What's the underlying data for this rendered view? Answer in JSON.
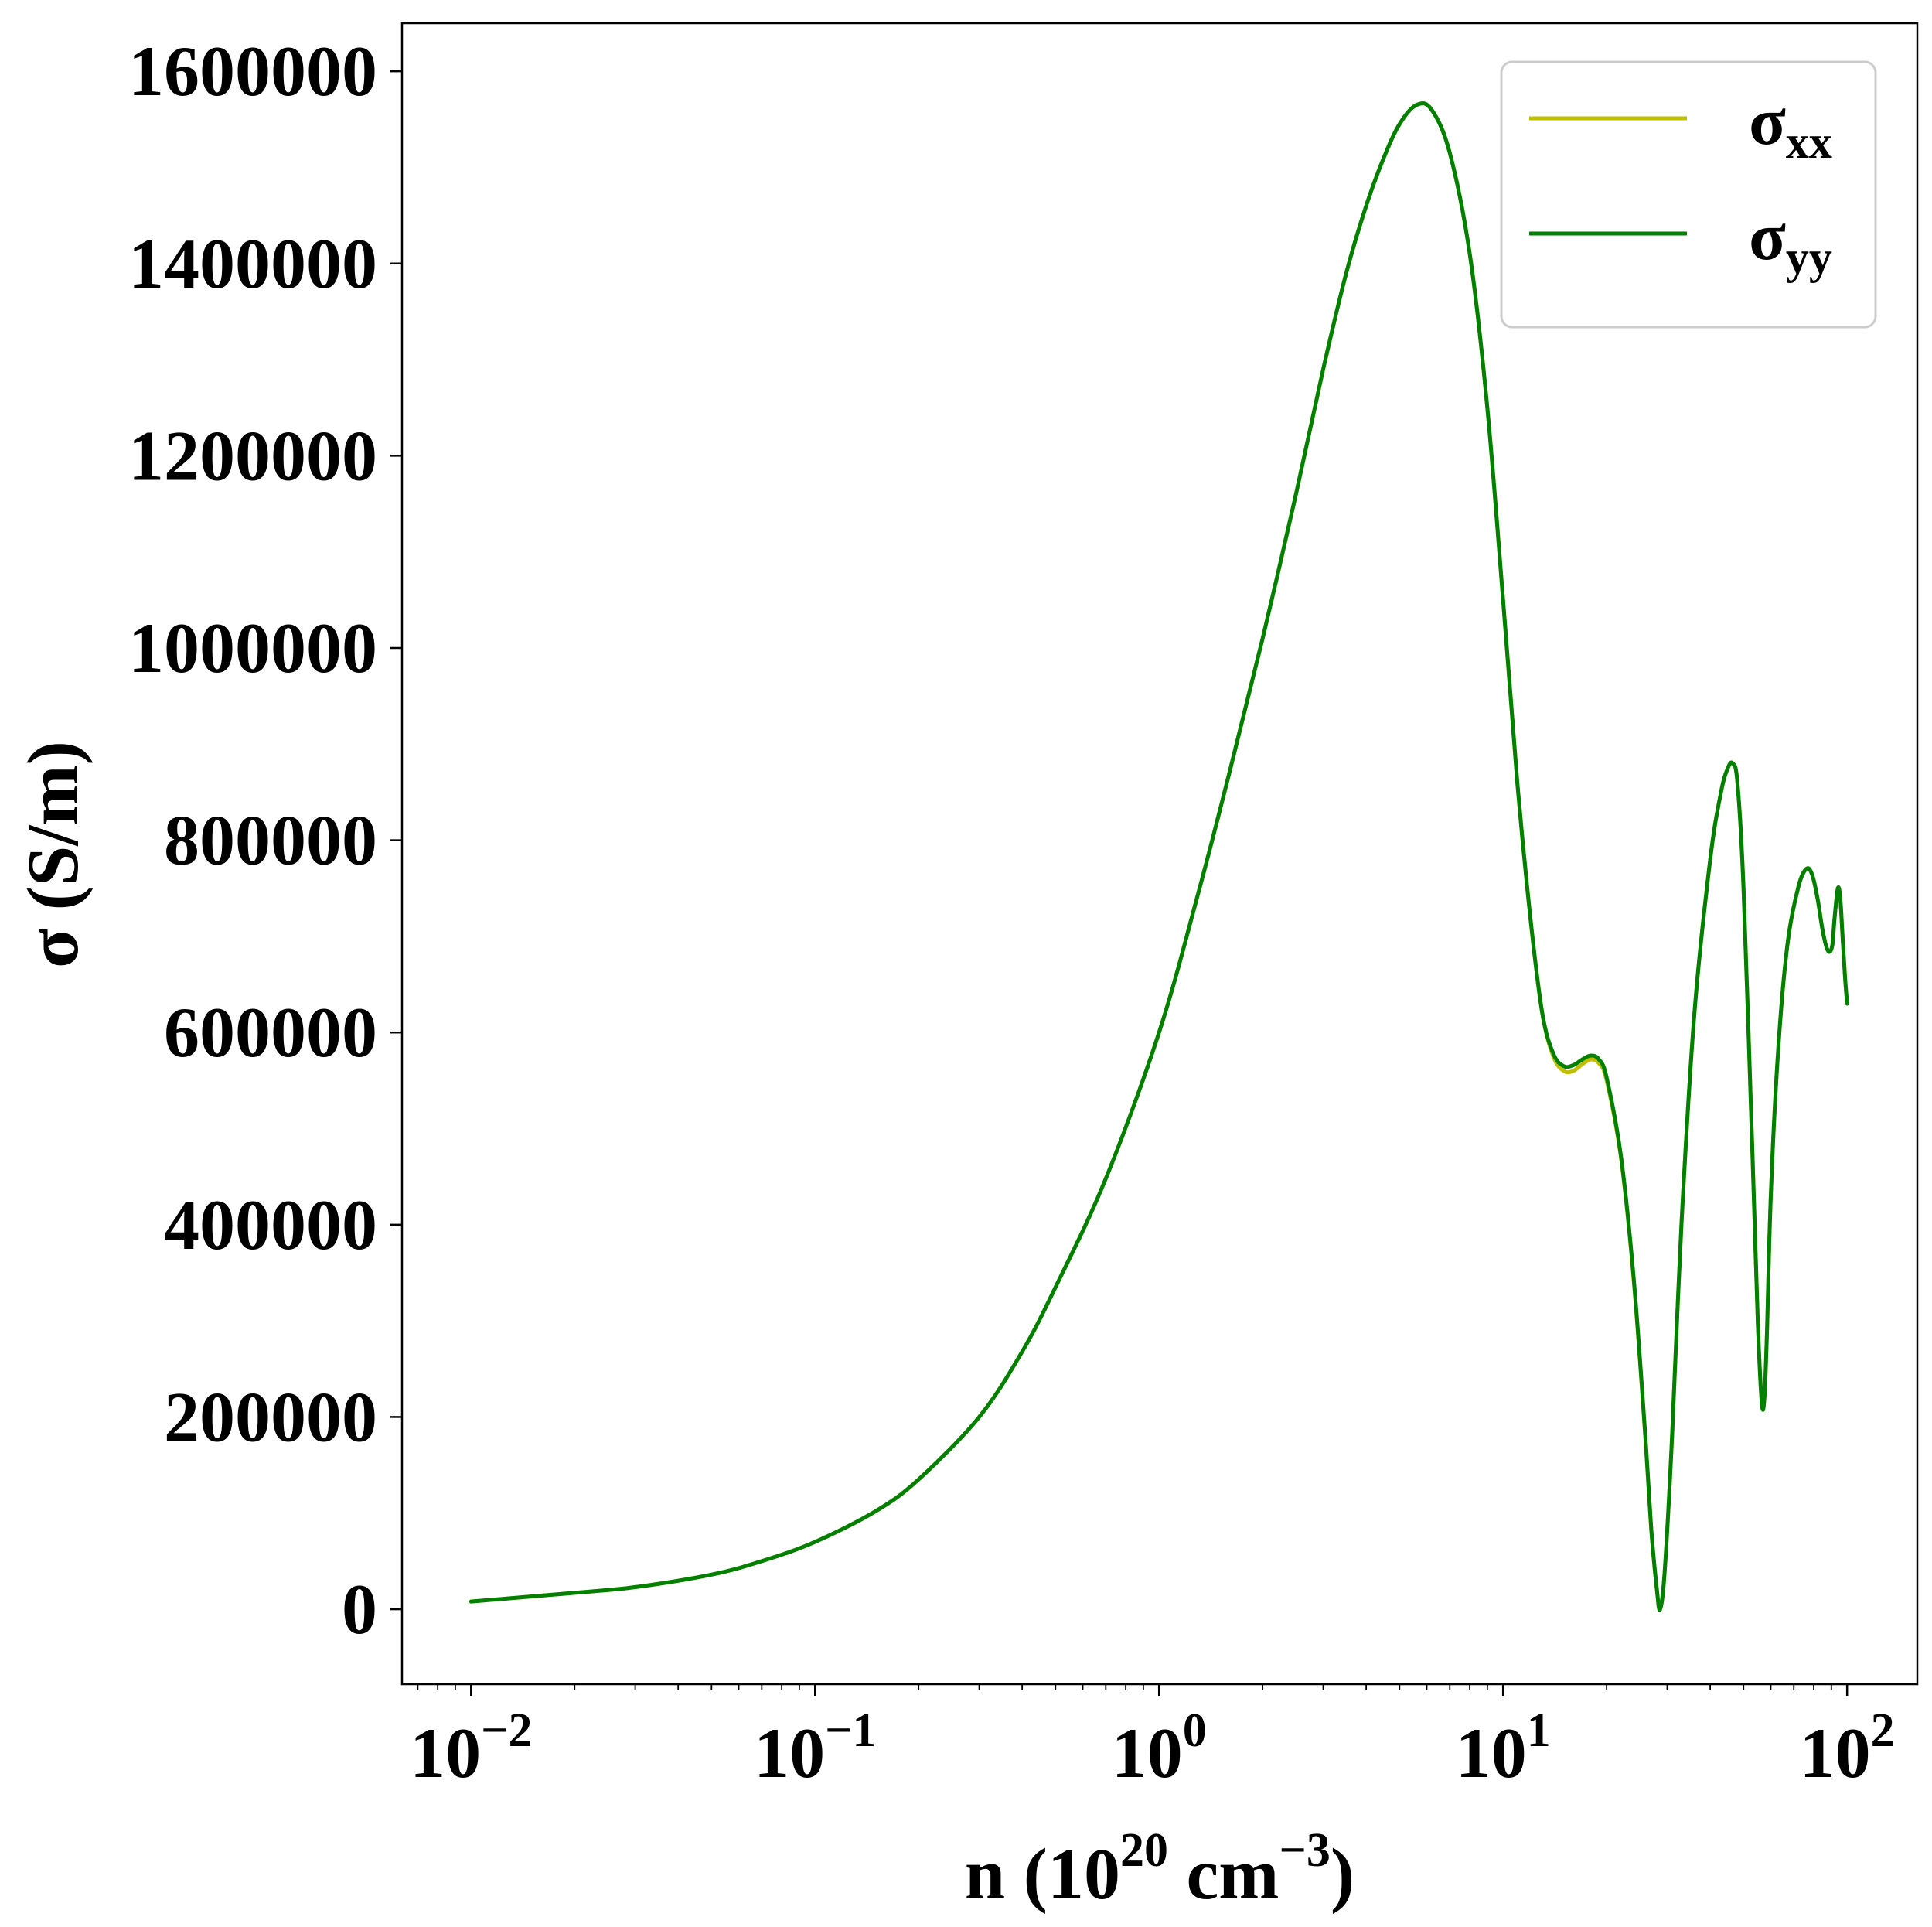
{
  "chart_data": {
    "type": "line",
    "title": "",
    "xlabel": {
      "base": "n (10",
      "exp1": "20",
      "mid": " cm",
      "exp2": "−3",
      "end": ")"
    },
    "ylabel": "σ (S/m)",
    "x_scale": "log",
    "xlim": [
      0.0063,
      160
    ],
    "ylim": [
      -78000,
      1650000
    ],
    "grid": false,
    "legend_position": "top-right",
    "x_ticks": [
      {
        "value": 0.01,
        "base": "10",
        "exp": "−2"
      },
      {
        "value": 0.1,
        "base": "10",
        "exp": "−1"
      },
      {
        "value": 1,
        "base": "10",
        "exp": "0"
      },
      {
        "value": 10,
        "base": "10",
        "exp": "1"
      },
      {
        "value": 100,
        "base": "10",
        "exp": "2"
      }
    ],
    "y_ticks": [
      {
        "value": 0,
        "label": "0"
      },
      {
        "value": 200000,
        "label": "200000"
      },
      {
        "value": 400000,
        "label": "400000"
      },
      {
        "value": 600000,
        "label": "600000"
      },
      {
        "value": 800000,
        "label": "800000"
      },
      {
        "value": 1000000,
        "label": "1000000"
      },
      {
        "value": 1200000,
        "label": "1200000"
      },
      {
        "value": 1400000,
        "label": "1400000"
      },
      {
        "value": 1600000,
        "label": "1600000"
      }
    ],
    "series": [
      {
        "name": "σxx",
        "label_base": "σ",
        "label_sub": "xx",
        "color": "#bfbf00",
        "x": [
          0.01,
          0.02,
          0.03,
          0.05,
          0.07,
          0.1,
          0.15,
          0.2,
          0.3,
          0.4,
          0.5,
          0.7,
          1.0,
          1.3,
          1.6,
          2.0,
          2.5,
          3.0,
          3.5,
          4.0,
          4.5,
          5.0,
          5.6,
          6.2,
          7.0,
          8.0,
          9.0,
          10.0,
          11.0,
          12.0,
          13.0,
          14.0,
          15.0,
          16.0,
          17.0,
          18.0,
          19.0,
          20.0,
          22.0,
          24.0,
          26.0,
          27.0,
          28.0,
          28.6,
          29.5,
          31.0,
          33.0,
          36.0,
          40.0,
          43.0,
          45.0,
          46.5,
          48.0,
          50.0,
          53.0,
          55.0,
          56.5,
          57.5,
          58.5,
          60.0,
          63.0,
          67.0,
          72.0,
          76.0,
          79.0,
          82.0,
          85.0,
          88.0,
          90.5,
          92.0,
          94.0,
          95.5,
          97.0,
          98.5,
          100.0
        ],
        "y": [
          8000,
          17000,
          23000,
          36000,
          50000,
          70000,
          102000,
          135000,
          200000,
          268000,
          335000,
          448000,
          600000,
          745000,
          870000,
          1010000,
          1160000,
          1290000,
          1390000,
          1460000,
          1510000,
          1545000,
          1565000,
          1560000,
          1515000,
          1410000,
          1250000,
          1050000,
          860000,
          720000,
          620000,
          575000,
          560000,
          560000,
          567000,
          572000,
          568000,
          550000,
          470000,
          340000,
          170000,
          80000,
          20000,
          0,
          40000,
          180000,
          400000,
          620000,
          780000,
          850000,
          875000,
          880000,
          860000,
          750000,
          480000,
          300000,
          215000,
          220000,
          290000,
          430000,
          580000,
          690000,
          750000,
          770000,
          765000,
          740000,
          705000,
          685000,
          690000,
          720000,
          750000,
          740000,
          700000,
          660000,
          630000
        ]
      },
      {
        "name": "σyy",
        "label_base": "σ",
        "label_sub": "yy",
        "color": "#008000",
        "x": [
          0.01,
          0.02,
          0.03,
          0.05,
          0.07,
          0.1,
          0.15,
          0.2,
          0.3,
          0.4,
          0.5,
          0.7,
          1.0,
          1.3,
          1.6,
          2.0,
          2.5,
          3.0,
          3.5,
          4.0,
          4.5,
          5.0,
          5.6,
          6.2,
          7.0,
          8.0,
          9.0,
          10.0,
          11.0,
          12.0,
          13.0,
          14.0,
          15.0,
          16.0,
          17.0,
          18.0,
          19.0,
          20.0,
          22.0,
          24.0,
          26.0,
          27.0,
          28.0,
          28.6,
          29.5,
          31.0,
          33.0,
          36.0,
          40.0,
          43.0,
          45.0,
          46.5,
          48.0,
          50.0,
          53.0,
          55.0,
          56.5,
          57.5,
          58.5,
          60.0,
          63.0,
          67.0,
          72.0,
          76.0,
          79.0,
          82.0,
          85.0,
          88.0,
          90.5,
          92.0,
          94.0,
          95.5,
          97.0,
          98.5,
          100.0
        ],
        "y": [
          8000,
          17000,
          23000,
          36000,
          50000,
          70000,
          102000,
          135000,
          200000,
          268000,
          335000,
          448000,
          600000,
          745000,
          870000,
          1010000,
          1160000,
          1290000,
          1390000,
          1460000,
          1510000,
          1545000,
          1565000,
          1560000,
          1515000,
          1410000,
          1250000,
          1050000,
          860000,
          720000,
          620000,
          578000,
          565000,
          566000,
          572000,
          576000,
          572000,
          553000,
          472000,
          342000,
          172000,
          81000,
          20000,
          0,
          40000,
          180000,
          400000,
          620000,
          780000,
          850000,
          875000,
          880000,
          860000,
          750000,
          480000,
          300000,
          215000,
          220000,
          290000,
          430000,
          580000,
          690000,
          750000,
          770000,
          765000,
          740000,
          705000,
          685000,
          690000,
          720000,
          750000,
          740000,
          700000,
          660000,
          630000
        ]
      }
    ]
  }
}
